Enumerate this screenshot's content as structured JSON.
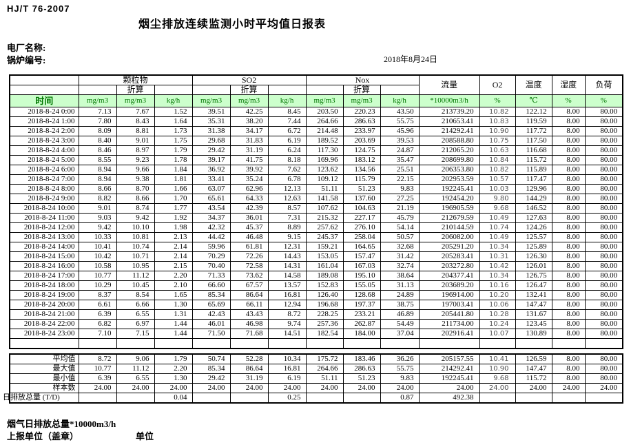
{
  "doc": {
    "standard": "HJ/T  76-2007",
    "title": "烟尘排放连续监测小时平均值日报表",
    "plant_label": "电厂名称:",
    "boiler_label": "锅炉编号:",
    "date": "2018年8月24日"
  },
  "colors": {
    "header_bg": "#ccffcc",
    "header_text": "#007700"
  },
  "table": {
    "time_header": "时间",
    "converted_label": "折算",
    "groups": {
      "pm": "颗粒物",
      "so2": "SO2",
      "nox": "Nox",
      "flow": "流量",
      "o2": "O2",
      "temp": "温度",
      "humidity": "湿度",
      "load": "负荷"
    },
    "units": {
      "mg": "mg/m3",
      "kgh": "kg/h",
      "flow": "*10000m3/h",
      "percent": "%",
      "temp": "℃"
    },
    "rows": [
      {
        "time": "2018-8-24 0:00",
        "values": [
          "7.13",
          "7.67",
          "1.52",
          "39.51",
          "42.25",
          "8.45",
          "203.50",
          "220.23",
          "43.50",
          "213739.20",
          "10.82",
          "122.12",
          "8.00",
          "80.00"
        ]
      },
      {
        "time": "2018-8-24 1:00",
        "values": [
          "7.80",
          "8.43",
          "1.64",
          "35.31",
          "38.20",
          "7.44",
          "264.66",
          "286.63",
          "55.75",
          "210653.41",
          "10.83",
          "119.59",
          "8.00",
          "80.00"
        ]
      },
      {
        "time": "2018-8-24 2:00",
        "values": [
          "8.09",
          "8.81",
          "1.73",
          "31.38",
          "34.17",
          "6.72",
          "214.48",
          "233.97",
          "45.96",
          "214292.41",
          "10.90",
          "117.72",
          "8.00",
          "80.00"
        ]
      },
      {
        "time": "2018-8-24 3:00",
        "values": [
          "8.40",
          "9.01",
          "1.75",
          "29.68",
          "31.83",
          "6.19",
          "189.52",
          "203.69",
          "39.53",
          "208588.80",
          "10.75",
          "117.50",
          "8.00",
          "80.00"
        ]
      },
      {
        "time": "2018-8-24 4:00",
        "values": [
          "8.46",
          "8.97",
          "1.79",
          "29.42",
          "31.19",
          "6.24",
          "117.30",
          "124.75",
          "24.87",
          "212065.20",
          "10.63",
          "116.68",
          "8.00",
          "80.00"
        ]
      },
      {
        "time": "2018-8-24 5:00",
        "values": [
          "8.55",
          "9.23",
          "1.78",
          "39.17",
          "41.75",
          "8.18",
          "169.96",
          "183.12",
          "35.47",
          "208699.80",
          "10.84",
          "115.72",
          "8.00",
          "80.00"
        ]
      },
      {
        "time": "2018-8-24 6:00",
        "values": [
          "8.94",
          "9.66",
          "1.84",
          "36.92",
          "39.92",
          "7.62",
          "123.62",
          "134.56",
          "25.51",
          "206353.80",
          "10.82",
          "115.89",
          "8.00",
          "80.00"
        ]
      },
      {
        "time": "2018-8-24 7:00",
        "values": [
          "8.94",
          "9.38",
          "1.81",
          "33.41",
          "35.24",
          "6.78",
          "109.12",
          "115.79",
          "22.15",
          "202953.59",
          "10.57",
          "117.47",
          "8.00",
          "80.00"
        ]
      },
      {
        "time": "2018-8-24 8:00",
        "values": [
          "8.66",
          "8.70",
          "1.66",
          "63.07",
          "62.96",
          "12.13",
          "51.11",
          "51.23",
          "9.83",
          "192245.41",
          "10.03",
          "129.96",
          "8.00",
          "80.00"
        ]
      },
      {
        "time": "2018-8-24 9:00",
        "values": [
          "8.82",
          "8.66",
          "1.70",
          "65.61",
          "64.33",
          "12.63",
          "141.58",
          "137.60",
          "27.25",
          "192454.20",
          "9.80",
          "144.29",
          "8.00",
          "80.00"
        ]
      },
      {
        "time": "2018-8-24 10:00",
        "values": [
          "9.01",
          "8.74",
          "1.77",
          "43.54",
          "42.39",
          "8.57",
          "107.62",
          "104.63",
          "21.19",
          "196905.59",
          "9.68",
          "146.52",
          "8.00",
          "80.00"
        ]
      },
      {
        "time": "2018-8-24 11:00",
        "values": [
          "9.03",
          "9.42",
          "1.92",
          "34.37",
          "36.01",
          "7.31",
          "215.32",
          "227.17",
          "45.79",
          "212679.59",
          "10.49",
          "127.63",
          "8.00",
          "80.00"
        ]
      },
      {
        "time": "2018-8-24 12:00",
        "values": [
          "9.42",
          "10.10",
          "1.98",
          "42.32",
          "45.37",
          "8.89",
          "257.62",
          "276.10",
          "54.14",
          "210144.59",
          "10.74",
          "124.26",
          "8.00",
          "80.00"
        ]
      },
      {
        "time": "2018-8-24 13:00",
        "values": [
          "10.33",
          "10.81",
          "2.13",
          "44.42",
          "46.48",
          "9.15",
          "245.37",
          "258.04",
          "50.57",
          "206082.00",
          "10.49",
          "125.57",
          "8.00",
          "80.00"
        ]
      },
      {
        "time": "2018-8-24 14:00",
        "values": [
          "10.41",
          "10.74",
          "2.14",
          "59.96",
          "61.81",
          "12.31",
          "159.21",
          "164.65",
          "32.68",
          "205291.20",
          "10.34",
          "125.89",
          "8.00",
          "80.00"
        ]
      },
      {
        "time": "2018-8-24 15:00",
        "values": [
          "10.42",
          "10.71",
          "2.14",
          "70.29",
          "72.26",
          "14.43",
          "153.05",
          "157.47",
          "31.42",
          "205283.41",
          "10.31",
          "126.30",
          "8.00",
          "80.00"
        ]
      },
      {
        "time": "2018-8-24 16:00",
        "values": [
          "10.58",
          "10.95",
          "2.15",
          "70.40",
          "72.58",
          "14.31",
          "161.04",
          "167.03",
          "32.74",
          "203272.80",
          "10.42",
          "126.01",
          "8.00",
          "80.00"
        ]
      },
      {
        "time": "2018-8-24 17:00",
        "values": [
          "10.77",
          "11.12",
          "2.20",
          "71.33",
          "73.62",
          "14.58",
          "189.08",
          "195.10",
          "38.64",
          "204377.41",
          "10.34",
          "126.75",
          "8.00",
          "80.00"
        ]
      },
      {
        "time": "2018-8-24 18:00",
        "values": [
          "10.29",
          "10.45",
          "2.10",
          "66.60",
          "67.57",
          "13.57",
          "152.83",
          "155.05",
          "31.13",
          "203689.20",
          "10.16",
          "126.47",
          "8.00",
          "80.00"
        ]
      },
      {
        "time": "2018-8-24 19:00",
        "values": [
          "8.37",
          "8.54",
          "1.65",
          "85.34",
          "86.64",
          "16.81",
          "126.40",
          "128.68",
          "24.89",
          "196914.00",
          "10.20",
          "132.41",
          "8.00",
          "80.00"
        ]
      },
      {
        "time": "2018-8-24 20:00",
        "values": [
          "6.61",
          "6.66",
          "1.30",
          "65.69",
          "66.11",
          "12.94",
          "196.68",
          "197.37",
          "38.75",
          "197003.41",
          "10.06",
          "147.47",
          "8.00",
          "80.00"
        ]
      },
      {
        "time": "2018-8-24 21:00",
        "values": [
          "6.39",
          "6.55",
          "1.31",
          "42.43",
          "43.43",
          "8.72",
          "228.25",
          "233.21",
          "46.89",
          "205441.80",
          "10.28",
          "131.67",
          "8.00",
          "80.00"
        ]
      },
      {
        "time": "2018-8-24 22:00",
        "values": [
          "6.82",
          "6.97",
          "1.44",
          "46.01",
          "46.98",
          "9.74",
          "257.36",
          "262.87",
          "54.49",
          "211734.00",
          "10.24",
          "123.45",
          "8.00",
          "80.00"
        ]
      },
      {
        "time": "2018-8-24 23:00",
        "values": [
          "7.10",
          "7.15",
          "1.44",
          "71.50",
          "71.68",
          "14.51",
          "182.54",
          "184.00",
          "37.04",
          "202916.41",
          "10.07",
          "130.89",
          "8.00",
          "80.00"
        ]
      }
    ],
    "summary": [
      {
        "label": "平均值",
        "values": [
          "8.72",
          "9.06",
          "1.79",
          "50.74",
          "52.28",
          "10.34",
          "175.72",
          "183.46",
          "36.26",
          "205157.55",
          "10.41",
          "126.59",
          "8.00",
          "80.00"
        ]
      },
      {
        "label": "最大值",
        "values": [
          "10.77",
          "11.12",
          "2.20",
          "85.34",
          "86.64",
          "16.81",
          "264.66",
          "286.63",
          "55.75",
          "214292.41",
          "10.90",
          "147.47",
          "8.00",
          "80.00"
        ]
      },
      {
        "label": "最小值",
        "values": [
          "6.39",
          "6.55",
          "1.30",
          "29.42",
          "31.19",
          "6.19",
          "51.11",
          "51.23",
          "9.83",
          "192245.41",
          "9.68",
          "115.72",
          "8.00",
          "80.00"
        ]
      },
      {
        "label": "样本数",
        "values": [
          "24.00",
          "24.00",
          "24.00",
          "24.00",
          "24.00",
          "24.00",
          "24.00",
          "24.00",
          "24.00",
          "24.00",
          "24.00",
          "24.00",
          "24.00",
          "24.00"
        ]
      },
      {
        "label": "日排放总量 (T/D)",
        "values": [
          "",
          "",
          "0.04",
          "",
          "",
          "0.25",
          "",
          "",
          "0.87",
          "492.38",
          "",
          "",
          "",
          ""
        ]
      }
    ]
  },
  "footer": {
    "flue_total_label": "烟气日排放总量*10000m3/h",
    "report_unit_label": "上报单位（盖章）",
    "unit_label": "单位"
  }
}
